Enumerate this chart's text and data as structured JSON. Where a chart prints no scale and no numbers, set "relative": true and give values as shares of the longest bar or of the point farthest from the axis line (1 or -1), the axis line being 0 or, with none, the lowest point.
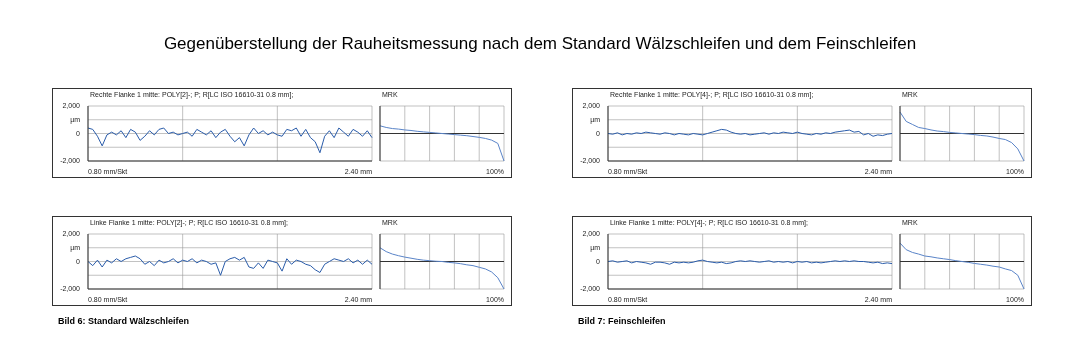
{
  "chart_data": [
    {
      "type": "line",
      "title": "Rechte Flanke 1 mitte: POLY[2]-; P; R[LC ISO 16610-31 0.8 mm];",
      "xlabel": "0.80 mm/Skt",
      "annotations": [
        "Gegenüberstellung der Rauheitsmessung nach dem Standard Wälzschleifen und dem Feinschleifen",
        "2.40 mm"
      ],
      "ylim": [
        -2000,
        2000
      ],
      "yticks": [
        {
          "value": -2000,
          "label": "-2,000"
        },
        {
          "value": -1000,
          "label": null
        },
        {
          "value": 0,
          "label": "0"
        },
        {
          "value": 1000,
          "label": "µm"
        },
        {
          "value": 2000,
          "label": "2,000"
        }
      ],
      "grid": true,
      "categories": [
        null,
        null,
        null,
        null,
        null,
        null,
        null,
        null,
        null,
        null,
        null,
        null,
        null,
        null,
        null,
        null,
        null,
        null,
        null,
        null,
        null,
        null,
        null,
        null,
        null,
        null,
        null,
        null,
        null,
        null,
        null,
        null,
        null,
        null,
        null,
        null,
        null,
        null,
        null,
        null,
        null,
        null,
        null,
        null,
        null,
        null,
        null,
        null,
        null,
        null,
        null,
        null,
        null,
        null,
        null,
        null,
        null,
        null,
        null,
        null,
        null
      ],
      "series": [
        {
          "color": "#2a5caa",
          "values": [
            400,
            300,
            -200,
            -900,
            -100,
            100,
            -100,
            200,
            -300,
            300,
            100,
            -500,
            -200,
            200,
            -100,
            300,
            400,
            0,
            100,
            -100,
            0,
            100,
            -200,
            300,
            100,
            -100,
            200,
            -300,
            100,
            300,
            -200,
            -600,
            -300,
            -900,
            -100,
            400,
            0,
            200,
            -100,
            100,
            -100,
            -200,
            300,
            200,
            400,
            -200,
            300,
            -300,
            -600,
            -1400,
            -200,
            200,
            -300,
            400,
            100,
            -200,
            300,
            100,
            -200,
            200,
            -300
          ]
        }
      ]
    },
    {
      "type": "line",
      "title": "MRK",
      "xlabel": "100%",
      "relative": true,
      "grid": true,
      "categories": [
        null,
        null,
        null,
        null,
        null,
        null,
        null,
        null,
        null,
        null,
        null,
        null,
        null,
        null,
        null,
        null,
        null,
        null,
        null,
        null,
        null
      ],
      "series": [
        {
          "color": "#5a84c8",
          "values": [
            0.28,
            0.22,
            0.18,
            0.16,
            0.13,
            0.11,
            0.08,
            0.06,
            0.04,
            0.02,
            0,
            -0.02,
            -0.04,
            -0.06,
            -0.08,
            -0.11,
            -0.14,
            -0.18,
            -0.24,
            -0.36,
            -1
          ]
        }
      ]
    },
    {
      "type": "line",
      "title": "Rechte Flanke 1 mitte: POLY[4]-; P; R[LC ISO 16610-31 0.8 mm];",
      "xlabel": "0.80 mm/Skt",
      "annotations": [
        "2.40 mm"
      ],
      "ylim": [
        -2000,
        2000
      ],
      "yticks": [
        {
          "value": -2000,
          "label": "-2,000"
        },
        {
          "value": -1000,
          "label": null
        },
        {
          "value": 0,
          "label": "0"
        },
        {
          "value": 1000,
          "label": "µm"
        },
        {
          "value": 2000,
          "label": "2,000"
        }
      ],
      "grid": true,
      "categories": [
        null,
        null,
        null,
        null,
        null,
        null,
        null,
        null,
        null,
        null,
        null,
        null,
        null,
        null,
        null,
        null,
        null,
        null,
        null,
        null,
        null,
        null,
        null,
        null,
        null,
        null,
        null,
        null,
        null,
        null,
        null,
        null,
        null,
        null,
        null,
        null,
        null,
        null,
        null,
        null,
        null,
        null,
        null,
        null,
        null,
        null,
        null,
        null,
        null,
        null,
        null,
        null,
        null,
        null,
        null,
        null,
        null,
        null,
        null,
        null,
        null
      ],
      "series": [
        {
          "color": "#2a5caa",
          "values": [
            0,
            -50,
            50,
            -100,
            0,
            -50,
            50,
            0,
            100,
            50,
            0,
            -50,
            50,
            0,
            -100,
            0,
            -50,
            -100,
            0,
            -50,
            -100,
            0,
            100,
            200,
            300,
            250,
            100,
            0,
            -50,
            0,
            -100,
            -50,
            0,
            50,
            -50,
            50,
            0,
            100,
            50,
            0,
            100,
            0,
            -50,
            -100,
            0,
            -50,
            50,
            0,
            100,
            150,
            200,
            250,
            100,
            150,
            -100,
            0,
            -200,
            -100,
            -150,
            -50,
            0
          ]
        }
      ]
    },
    {
      "type": "line",
      "title": "MRK",
      "xlabel": "100%",
      "relative": true,
      "grid": true,
      "categories": [
        null,
        null,
        null,
        null,
        null,
        null,
        null,
        null,
        null,
        null,
        null,
        null,
        null,
        null,
        null,
        null,
        null,
        null,
        null,
        null,
        null
      ],
      "series": [
        {
          "color": "#5a84c8",
          "values": [
            0.78,
            0.44,
            0.33,
            0.22,
            0.18,
            0.13,
            0.09,
            0.07,
            0.04,
            0.02,
            0,
            -0.02,
            -0.04,
            -0.07,
            -0.09,
            -0.13,
            -0.18,
            -0.22,
            -0.33,
            -0.56,
            -1
          ]
        }
      ]
    },
    {
      "type": "line",
      "title": "Linke Flanke 1 mitte: POLY[2]-; P; R[LC ISO 16610-31 0.8 mm];",
      "xlabel": "0.80 mm/Skt",
      "annotations": [
        "Bild 6: Standard Wälzschleifen",
        "2.40 mm"
      ],
      "ylim": [
        -2000,
        2000
      ],
      "yticks": [
        {
          "value": -2000,
          "label": "-2,000"
        },
        {
          "value": -1000,
          "label": null
        },
        {
          "value": 0,
          "label": "0"
        },
        {
          "value": 1000,
          "label": "µm"
        },
        {
          "value": 2000,
          "label": "2,000"
        }
      ],
      "grid": true,
      "categories": [
        null,
        null,
        null,
        null,
        null,
        null,
        null,
        null,
        null,
        null,
        null,
        null,
        null,
        null,
        null,
        null,
        null,
        null,
        null,
        null,
        null,
        null,
        null,
        null,
        null,
        null,
        null,
        null,
        null,
        null,
        null,
        null,
        null,
        null,
        null,
        null,
        null,
        null,
        null,
        null,
        null,
        null,
        null,
        null,
        null,
        null,
        null,
        null,
        null,
        null,
        null,
        null,
        null,
        null,
        null,
        null,
        null,
        null,
        null,
        null,
        null
      ],
      "series": [
        {
          "color": "#2a5caa",
          "values": [
            0,
            -300,
            100,
            -400,
            100,
            -100,
            200,
            0,
            200,
            300,
            400,
            200,
            -200,
            0,
            -300,
            100,
            -100,
            0,
            200,
            -100,
            100,
            0,
            200,
            -100,
            100,
            0,
            -200,
            -100,
            -1000,
            0,
            200,
            300,
            100,
            300,
            -400,
            -500,
            -100,
            -500,
            100,
            0,
            -100,
            -700,
            200,
            -200,
            100,
            0,
            -200,
            -300,
            -600,
            -800,
            -200,
            0,
            200,
            100,
            0,
            200,
            -100,
            100,
            -200,
            100,
            -200
          ]
        }
      ]
    },
    {
      "type": "line",
      "title": "MRK",
      "xlabel": "100%",
      "relative": true,
      "grid": true,
      "categories": [
        null,
        null,
        null,
        null,
        null,
        null,
        null,
        null,
        null,
        null,
        null,
        null,
        null,
        null,
        null,
        null,
        null,
        null,
        null,
        null,
        null
      ],
      "series": [
        {
          "color": "#5a84c8",
          "values": [
            0.5,
            0.36,
            0.27,
            0.21,
            0.16,
            0.12,
            0.08,
            0.05,
            0.03,
            0.01,
            0,
            -0.03,
            -0.05,
            -0.08,
            -0.12,
            -0.15,
            -0.21,
            -0.27,
            -0.38,
            -0.59,
            -1
          ]
        }
      ]
    },
    {
      "type": "line",
      "title": "Linke Flanke 1 mitte: POLY[4]-; P; R[LC ISO 16610-31 0.8 mm];",
      "xlabel": "0.80 mm/Skt",
      "annotations": [
        "Bild 7: Feinschleifen",
        "2.40 mm"
      ],
      "ylim": [
        -2000,
        2000
      ],
      "yticks": [
        {
          "value": -2000,
          "label": "-2,000"
        },
        {
          "value": -1000,
          "label": null
        },
        {
          "value": 0,
          "label": "0"
        },
        {
          "value": 1000,
          "label": "µm"
        },
        {
          "value": 2000,
          "label": "2,000"
        }
      ],
      "grid": true,
      "categories": [
        null,
        null,
        null,
        null,
        null,
        null,
        null,
        null,
        null,
        null,
        null,
        null,
        null,
        null,
        null,
        null,
        null,
        null,
        null,
        null,
        null,
        null,
        null,
        null,
        null,
        null,
        null,
        null,
        null,
        null,
        null,
        null,
        null,
        null,
        null,
        null,
        null,
        null,
        null,
        null,
        null,
        null,
        null,
        null,
        null,
        null,
        null,
        null,
        null,
        null,
        null,
        null,
        null,
        null,
        null,
        null,
        null,
        null,
        null,
        null,
        null
      ],
      "series": [
        {
          "color": "#2a5caa",
          "values": [
            0,
            50,
            -50,
            0,
            50,
            -100,
            0,
            -50,
            -100,
            -200,
            -50,
            -50,
            -100,
            -200,
            -50,
            -100,
            -50,
            -100,
            -50,
            50,
            100,
            0,
            -50,
            -100,
            -50,
            -150,
            -100,
            0,
            50,
            0,
            50,
            0,
            -50,
            0,
            50,
            -50,
            0,
            -50,
            0,
            -100,
            0,
            -50,
            0,
            -100,
            -50,
            -100,
            -50,
            0,
            50,
            0,
            50,
            0,
            50,
            0,
            0,
            -50,
            -100,
            -50,
            -150,
            -100,
            -150
          ]
        }
      ]
    },
    {
      "type": "line",
      "title": "MRK",
      "xlabel": "100%",
      "relative": true,
      "grid": true,
      "categories": [
        null,
        null,
        null,
        null,
        null,
        null,
        null,
        null,
        null,
        null,
        null,
        null,
        null,
        null,
        null,
        null,
        null,
        null,
        null,
        null,
        null
      ],
      "series": [
        {
          "color": "#5a84c8",
          "values": [
            0.67,
            0.43,
            0.33,
            0.27,
            0.2,
            0.17,
            0.13,
            0.1,
            0.07,
            0.03,
            0,
            -0.03,
            -0.07,
            -0.1,
            -0.13,
            -0.17,
            -0.2,
            -0.27,
            -0.33,
            -0.5,
            -1
          ]
        }
      ]
    }
  ]
}
